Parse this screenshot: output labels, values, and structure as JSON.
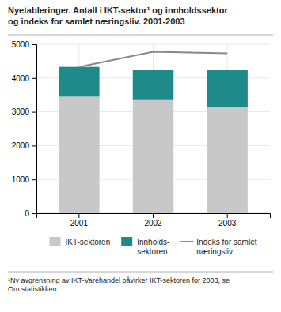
{
  "chart_data": {
    "type": "bar",
    "title": "Nyetableringer. Antall i IKT-sektor¹ og innholdssektor\nog indeks for samlet næringsliv. 2001-2003",
    "categories": [
      "2001",
      "2002",
      "2003"
    ],
    "series": [
      {
        "name": "IKT-sektoren",
        "type": "bar",
        "color": "#c8c8c8",
        "values": [
          3450,
          3370,
          3150
        ]
      },
      {
        "name": "Innholds-\nsektoren",
        "type": "bar",
        "color": "#1e8a8a",
        "values": [
          880,
          870,
          1080
        ]
      },
      {
        "name": "Indeks for samlet\nnæringsliv",
        "type": "line",
        "color": "#888888",
        "values": [
          4330,
          4780,
          4730
        ]
      }
    ],
    "stacked": true,
    "ylim": [
      0,
      5000
    ],
    "yticks": [
      0,
      1000,
      2000,
      3000,
      4000,
      5000
    ],
    "grid": true,
    "legend": "bottom",
    "annotations": [
      "¹Ny avgrensning av IKT-Varehandel påvirker IKT-sektoren for 2003, se\nOm statistikken."
    ]
  }
}
